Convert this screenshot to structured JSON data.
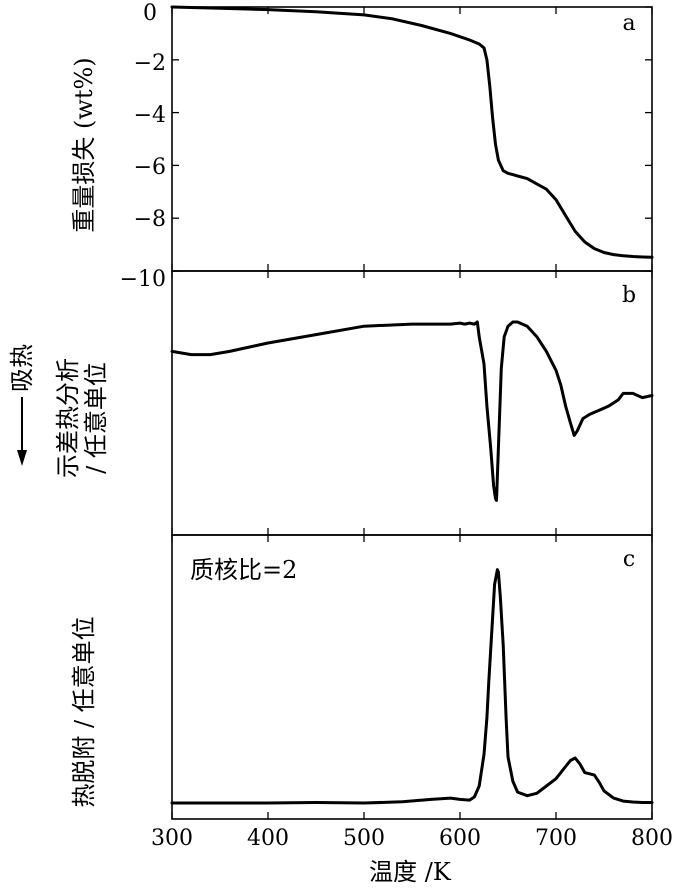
{
  "chart_data": [
    {
      "panel": "a",
      "type": "line",
      "ylabel": "重量损失 (wt%)",
      "xlim": [
        300,
        800
      ],
      "ylim": [
        -10,
        0
      ],
      "yticks": [
        0,
        -2,
        -4,
        -6,
        -8,
        -10
      ],
      "ytick_labels": [
        "0",
        "−2",
        "−4",
        "−6",
        "−8",
        "−10"
      ],
      "series": [
        {
          "x": [
            300,
            350,
            400,
            450,
            500,
            530,
            560,
            590,
            610,
            620,
            625,
            628,
            631,
            634,
            637,
            640,
            645,
            650,
            655,
            660,
            670,
            680,
            690,
            700,
            710,
            720,
            730,
            740,
            750,
            760,
            770,
            780,
            790,
            800
          ],
          "y": [
            0,
            -0.05,
            -0.1,
            -0.18,
            -0.3,
            -0.45,
            -0.7,
            -1.0,
            -1.25,
            -1.4,
            -1.55,
            -2.0,
            -3.0,
            -4.2,
            -5.2,
            -5.8,
            -6.2,
            -6.3,
            -6.35,
            -6.4,
            -6.5,
            -6.7,
            -6.9,
            -7.3,
            -7.9,
            -8.5,
            -8.9,
            -9.15,
            -9.3,
            -9.38,
            -9.42,
            -9.45,
            -9.47,
            -9.48
          ]
        }
      ]
    },
    {
      "panel": "b",
      "type": "line",
      "ylabel_lines": [
        "示差热分析",
        "/ 任意单位"
      ],
      "side_label": "吸热",
      "xlim": [
        300,
        800
      ],
      "ylim": [
        0,
        10
      ],
      "series": [
        {
          "x": [
            300,
            320,
            340,
            360,
            400,
            450,
            500,
            550,
            590,
            600,
            605,
            610,
            615,
            618,
            620,
            625,
            628,
            632,
            635,
            637,
            638,
            640,
            643,
            646,
            650,
            655,
            660,
            670,
            680,
            690,
            700,
            705,
            710,
            715,
            719,
            722,
            728,
            735,
            745,
            755,
            765,
            770,
            780,
            790,
            800
          ],
          "y": [
            7.6,
            7.45,
            7.45,
            7.6,
            8.0,
            8.4,
            8.8,
            8.9,
            8.9,
            8.95,
            8.9,
            8.95,
            8.9,
            9.0,
            8.3,
            7.0,
            5.0,
            3.0,
            1.2,
            0.6,
            0.5,
            3.0,
            6.8,
            8.3,
            8.8,
            9.0,
            9.0,
            8.8,
            8.3,
            7.6,
            6.7,
            6.0,
            5.0,
            4.2,
            3.6,
            3.8,
            4.4,
            4.6,
            4.8,
            5.0,
            5.3,
            5.6,
            5.6,
            5.4,
            5.5
          ]
        }
      ]
    },
    {
      "panel": "c",
      "type": "line",
      "ylabel": "热脱附 / 任意单位",
      "annotation": "质核比=2",
      "xlabel": "温度 /K",
      "xticks": [
        300,
        400,
        500,
        600,
        700,
        800
      ],
      "xlim": [
        300,
        800
      ],
      "ylim": [
        0,
        10
      ],
      "series": [
        {
          "x": [
            300,
            350,
            400,
            450,
            500,
            540,
            570,
            590,
            600,
            610,
            615,
            620,
            625,
            628,
            630,
            633,
            636,
            639,
            640,
            642,
            645,
            648,
            650,
            655,
            660,
            670,
            680,
            690,
            700,
            710,
            715,
            720,
            725,
            730,
            735,
            740,
            745,
            750,
            760,
            770,
            780,
            790,
            800
          ],
          "y": [
            0.0,
            0.0,
            0.0,
            0.02,
            0.0,
            0.05,
            0.15,
            0.2,
            0.15,
            0.12,
            0.25,
            0.7,
            2.0,
            3.5,
            5.0,
            7.0,
            9.0,
            9.6,
            9.5,
            8.5,
            6.5,
            3.5,
            1.9,
            0.9,
            0.45,
            0.3,
            0.4,
            0.7,
            1.0,
            1.5,
            1.75,
            1.85,
            1.6,
            1.25,
            1.2,
            1.15,
            0.85,
            0.5,
            0.2,
            0.08,
            0.04,
            0.02,
            0.02
          ]
        }
      ]
    }
  ],
  "tick_labels": {
    "y_a": [
      "0",
      "−2",
      "−4",
      "−6",
      "−8",
      "−10"
    ],
    "x": [
      "300",
      "400",
      "500",
      "600",
      "700",
      "800"
    ]
  },
  "labels": {
    "panel_a": "a",
    "panel_b": "b",
    "panel_c": "c",
    "ylabel_a": "重量损失 (wt%)",
    "ylabel_b_line1": "示差热分析",
    "ylabel_b_line2": "/ 任意单位",
    "endotherm": "吸热",
    "ylabel_c": "热脱附 / 任意单位",
    "annotation_c": "质核比=2",
    "xlabel": "温度 /K"
  }
}
